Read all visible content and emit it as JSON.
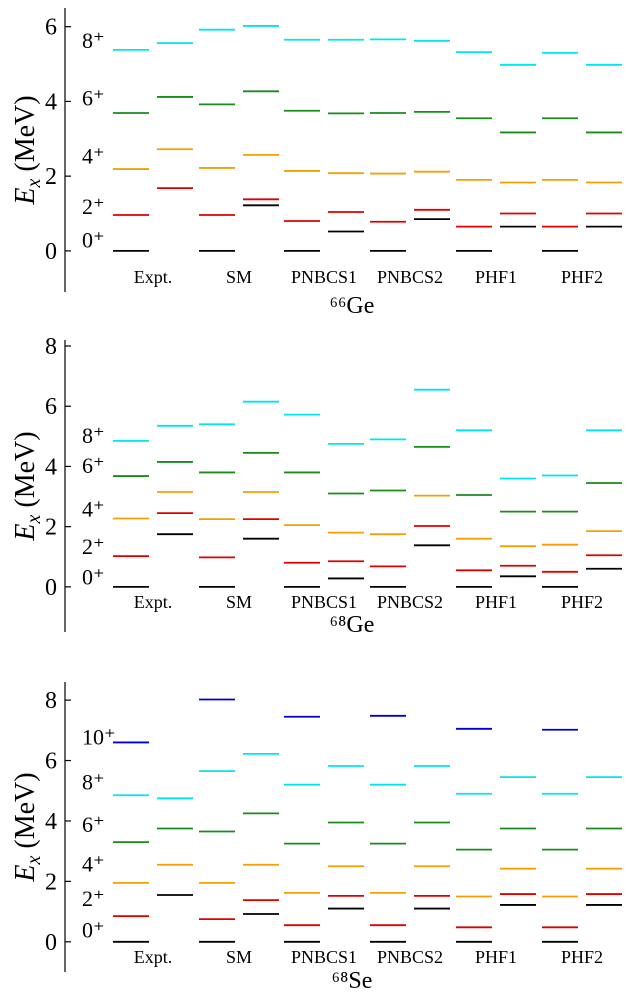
{
  "chart_data": [
    {
      "type": "level-scheme",
      "nucleus_label": "⁶⁶Ge",
      "ylabel_main": "E",
      "ylabel_sub": "x",
      "ylabel_unit": " (MeV)",
      "ylim": [
        -1.1,
        6.5
      ],
      "yticks": [
        "0",
        "2",
        "4",
        "6"
      ],
      "tick_values": [
        0,
        2,
        4,
        6
      ],
      "spin_labels": [
        "0⁺",
        "2⁺",
        "4⁺",
        "6⁺",
        "8⁺"
      ],
      "spin_label_values": [
        0.3,
        1.2,
        2.55,
        4.1,
        5.65
      ],
      "groups": [
        "Expt.",
        "SM",
        "PNBCS1",
        "PNBCS2",
        "PHF1",
        "PHF2"
      ],
      "columns": [
        {
          "group": 0,
          "slot": 0,
          "levels": [
            0,
            0.96,
            2.19,
            3.69,
            5.38
          ]
        },
        {
          "group": 0,
          "slot": 1,
          "levels": [
            null,
            1.68,
            2.72,
            4.12,
            5.56
          ]
        },
        {
          "group": 1,
          "slot": 0,
          "levels": [
            0,
            0.96,
            2.22,
            3.92,
            5.92
          ]
        },
        {
          "group": 1,
          "slot": 1,
          "levels": [
            1.22,
            1.38,
            2.57,
            4.27,
            6.02
          ]
        },
        {
          "group": 2,
          "slot": 0,
          "levels": [
            0,
            0.8,
            2.14,
            3.75,
            5.65
          ]
        },
        {
          "group": 2,
          "slot": 1,
          "levels": [
            0.52,
            1.04,
            2.08,
            3.68,
            5.65
          ]
        },
        {
          "group": 3,
          "slot": 0,
          "levels": [
            0,
            0.78,
            2.07,
            3.69,
            5.66
          ]
        },
        {
          "group": 3,
          "slot": 1,
          "levels": [
            0.85,
            1.1,
            2.12,
            3.72,
            5.62
          ]
        },
        {
          "group": 4,
          "slot": 0,
          "levels": [
            0,
            0.65,
            1.9,
            3.55,
            5.32
          ]
        },
        {
          "group": 4,
          "slot": 1,
          "levels": [
            0.65,
            1.0,
            1.83,
            3.17,
            4.98
          ]
        },
        {
          "group": 5,
          "slot": 0,
          "levels": [
            0,
            0.65,
            1.9,
            3.55,
            5.3
          ]
        },
        {
          "group": 5,
          "slot": 1,
          "levels": [
            0.65,
            1.0,
            1.83,
            3.17,
            4.98
          ]
        }
      ]
    },
    {
      "type": "level-scheme",
      "nucleus_label": "⁶⁸Ge",
      "ylabel_main": "E",
      "ylabel_sub": "x",
      "ylabel_unit": " (MeV)",
      "ylim": [
        -1.5,
        8.2
      ],
      "yticks": [
        "0",
        "2",
        "4",
        "6",
        "8"
      ],
      "tick_values": [
        0,
        2,
        4,
        6,
        8
      ],
      "spin_labels": [
        "0⁺",
        "2⁺",
        "4⁺",
        "6⁺",
        "8⁺"
      ],
      "spin_label_values": [
        0.35,
        1.35,
        2.6,
        4.05,
        5.05
      ],
      "groups": [
        "Expt.",
        "SM",
        "PNBCS1",
        "PNBCS2",
        "PHF1",
        "PHF2"
      ],
      "columns": [
        {
          "group": 0,
          "slot": 0,
          "levels": [
            0,
            1.02,
            2.27,
            3.68,
            4.85
          ]
        },
        {
          "group": 0,
          "slot": 1,
          "levels": [
            1.75,
            2.45,
            3.15,
            4.15,
            5.35
          ]
        },
        {
          "group": 1,
          "slot": 0,
          "levels": [
            0,
            0.98,
            2.25,
            3.8,
            5.4
          ]
        },
        {
          "group": 1,
          "slot": 1,
          "levels": [
            1.6,
            2.25,
            3.15,
            4.45,
            6.15
          ]
        },
        {
          "group": 2,
          "slot": 0,
          "levels": [
            0,
            0.8,
            2.05,
            3.8,
            5.72
          ]
        },
        {
          "group": 2,
          "slot": 1,
          "levels": [
            0.28,
            0.85,
            1.8,
            3.1,
            4.75
          ]
        },
        {
          "group": 3,
          "slot": 0,
          "levels": [
            0,
            0.68,
            1.75,
            3.2,
            4.9
          ]
        },
        {
          "group": 3,
          "slot": 1,
          "levels": [
            1.38,
            2.02,
            3.03,
            4.65,
            6.55
          ]
        },
        {
          "group": 4,
          "slot": 0,
          "levels": [
            0,
            0.55,
            1.6,
            3.05,
            5.2
          ]
        },
        {
          "group": 4,
          "slot": 1,
          "levels": [
            0.35,
            0.7,
            1.35,
            2.5,
            3.6
          ]
        },
        {
          "group": 5,
          "slot": 0,
          "levels": [
            0,
            0.5,
            1.4,
            2.5,
            3.7
          ]
        },
        {
          "group": 5,
          "slot": 1,
          "levels": [
            0.6,
            1.05,
            1.85,
            3.45,
            5.2
          ]
        }
      ]
    },
    {
      "type": "level-scheme",
      "nucleus_label": "⁶⁸Se",
      "ylabel_main": "E",
      "ylabel_sub": "x",
      "ylabel_unit": " (MeV)",
      "ylim": [
        -1.0,
        8.6
      ],
      "yticks": [
        "0",
        "2",
        "4",
        "6",
        "8"
      ],
      "tick_values": [
        0,
        2,
        4,
        6,
        8
      ],
      "spin_labels": [
        "0⁺",
        "2⁺",
        "4⁺",
        "6⁺",
        "8⁺",
        "10⁺"
      ],
      "spin_label_values": [
        0.4,
        1.45,
        2.6,
        3.9,
        5.3,
        6.8
      ],
      "groups": [
        "Expt.",
        "SM",
        "PNBCS1",
        "PNBCS2",
        "PHF1",
        "PHF2"
      ],
      "columns": [
        {
          "group": 0,
          "slot": 0,
          "levels": [
            0,
            0.85,
            1.95,
            3.3,
            4.85,
            6.6
          ]
        },
        {
          "group": 0,
          "slot": 1,
          "levels": [
            1.55,
            null,
            2.55,
            3.75,
            4.75,
            null
          ]
        },
        {
          "group": 1,
          "slot": 0,
          "levels": [
            0,
            0.75,
            1.95,
            3.65,
            5.65,
            8.02
          ]
        },
        {
          "group": 1,
          "slot": 1,
          "levels": [
            0.92,
            1.38,
            2.55,
            4.25,
            6.22,
            null
          ]
        },
        {
          "group": 2,
          "slot": 0,
          "levels": [
            0,
            0.55,
            1.62,
            3.25,
            5.2,
            7.45
          ]
        },
        {
          "group": 2,
          "slot": 1,
          "levels": [
            1.1,
            1.52,
            2.5,
            3.95,
            5.82,
            null
          ]
        },
        {
          "group": 3,
          "slot": 0,
          "levels": [
            0,
            0.55,
            1.62,
            3.25,
            5.2,
            7.48
          ]
        },
        {
          "group": 3,
          "slot": 1,
          "levels": [
            1.1,
            1.52,
            2.5,
            3.95,
            5.82,
            null
          ]
        },
        {
          "group": 4,
          "slot": 0,
          "levels": [
            0,
            0.48,
            1.5,
            3.05,
            4.9,
            7.05
          ]
        },
        {
          "group": 4,
          "slot": 1,
          "levels": [
            1.22,
            1.58,
            2.42,
            3.75,
            5.45,
            null
          ]
        },
        {
          "group": 5,
          "slot": 0,
          "levels": [
            0,
            0.48,
            1.5,
            3.05,
            4.9,
            7.02
          ]
        },
        {
          "group": 5,
          "slot": 1,
          "levels": [
            1.22,
            1.58,
            2.42,
            3.75,
            5.45,
            null
          ]
        }
      ]
    }
  ],
  "level_colors": [
    "#000000",
    "#e00000",
    "#f5a000",
    "#1a8a1a",
    "#00e5ee",
    "#0000cc"
  ],
  "axis_color": "#000000"
}
